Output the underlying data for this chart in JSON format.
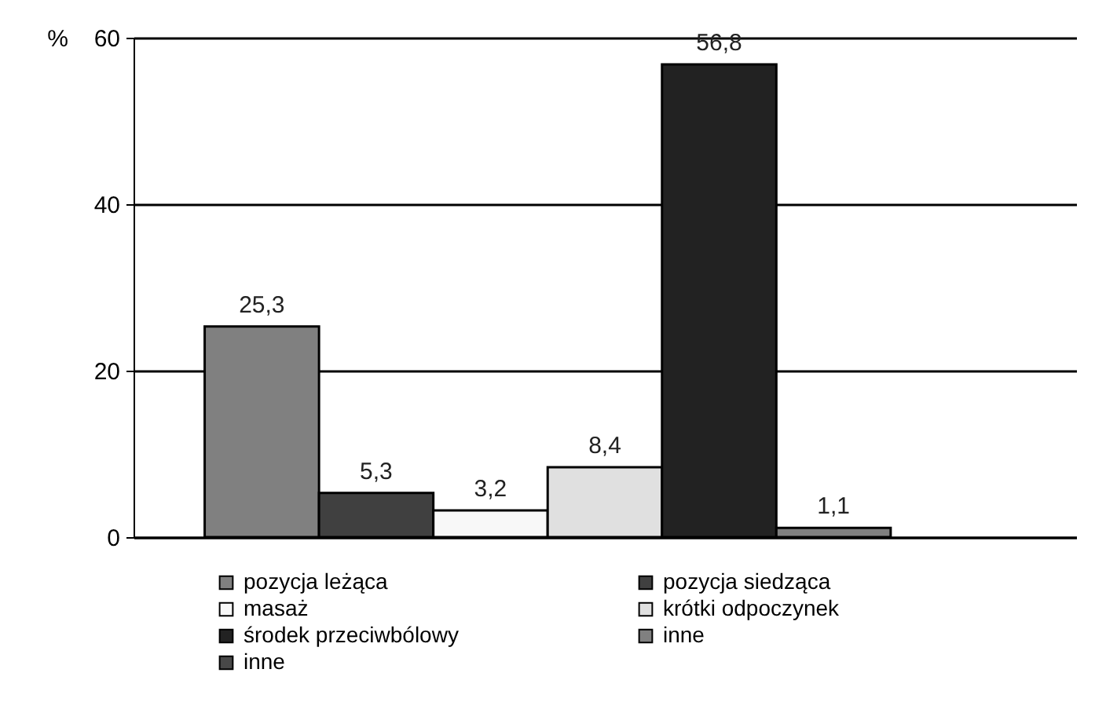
{
  "chart_data": {
    "type": "bar",
    "ylabel": "%",
    "categories": [
      null
    ],
    "ylim": [
      0,
      60
    ],
    "yticks": [
      0,
      20,
      40,
      60
    ],
    "grid": "y",
    "legend": "bottom",
    "series": [
      {
        "name": "pozycja leżąca",
        "color": "#808080",
        "values": [
          25.3
        ],
        "value_labels": [
          "25,3"
        ]
      },
      {
        "name": "pozycja siedząca",
        "color": "#404040",
        "values": [
          5.3
        ],
        "value_labels": [
          "5,3"
        ]
      },
      {
        "name": "masaż",
        "color": "#f8f8f8",
        "values": [
          3.2
        ],
        "value_labels": [
          "3,2"
        ]
      },
      {
        "name": "krótki odpoczynek",
        "color": "#e0e0e0",
        "values": [
          8.4
        ],
        "value_labels": [
          "8,4"
        ]
      },
      {
        "name": "środek przeciwbólowy",
        "color": "#222222",
        "values": [
          56.8
        ],
        "value_labels": [
          "56,8"
        ]
      },
      {
        "name": "inne",
        "color": "#808080",
        "values": [
          1.1
        ],
        "value_labels": [
          "1,1"
        ]
      },
      {
        "name": "inne",
        "color": "#484848",
        "values": [
          null
        ],
        "value_labels": [
          null
        ]
      }
    ]
  }
}
